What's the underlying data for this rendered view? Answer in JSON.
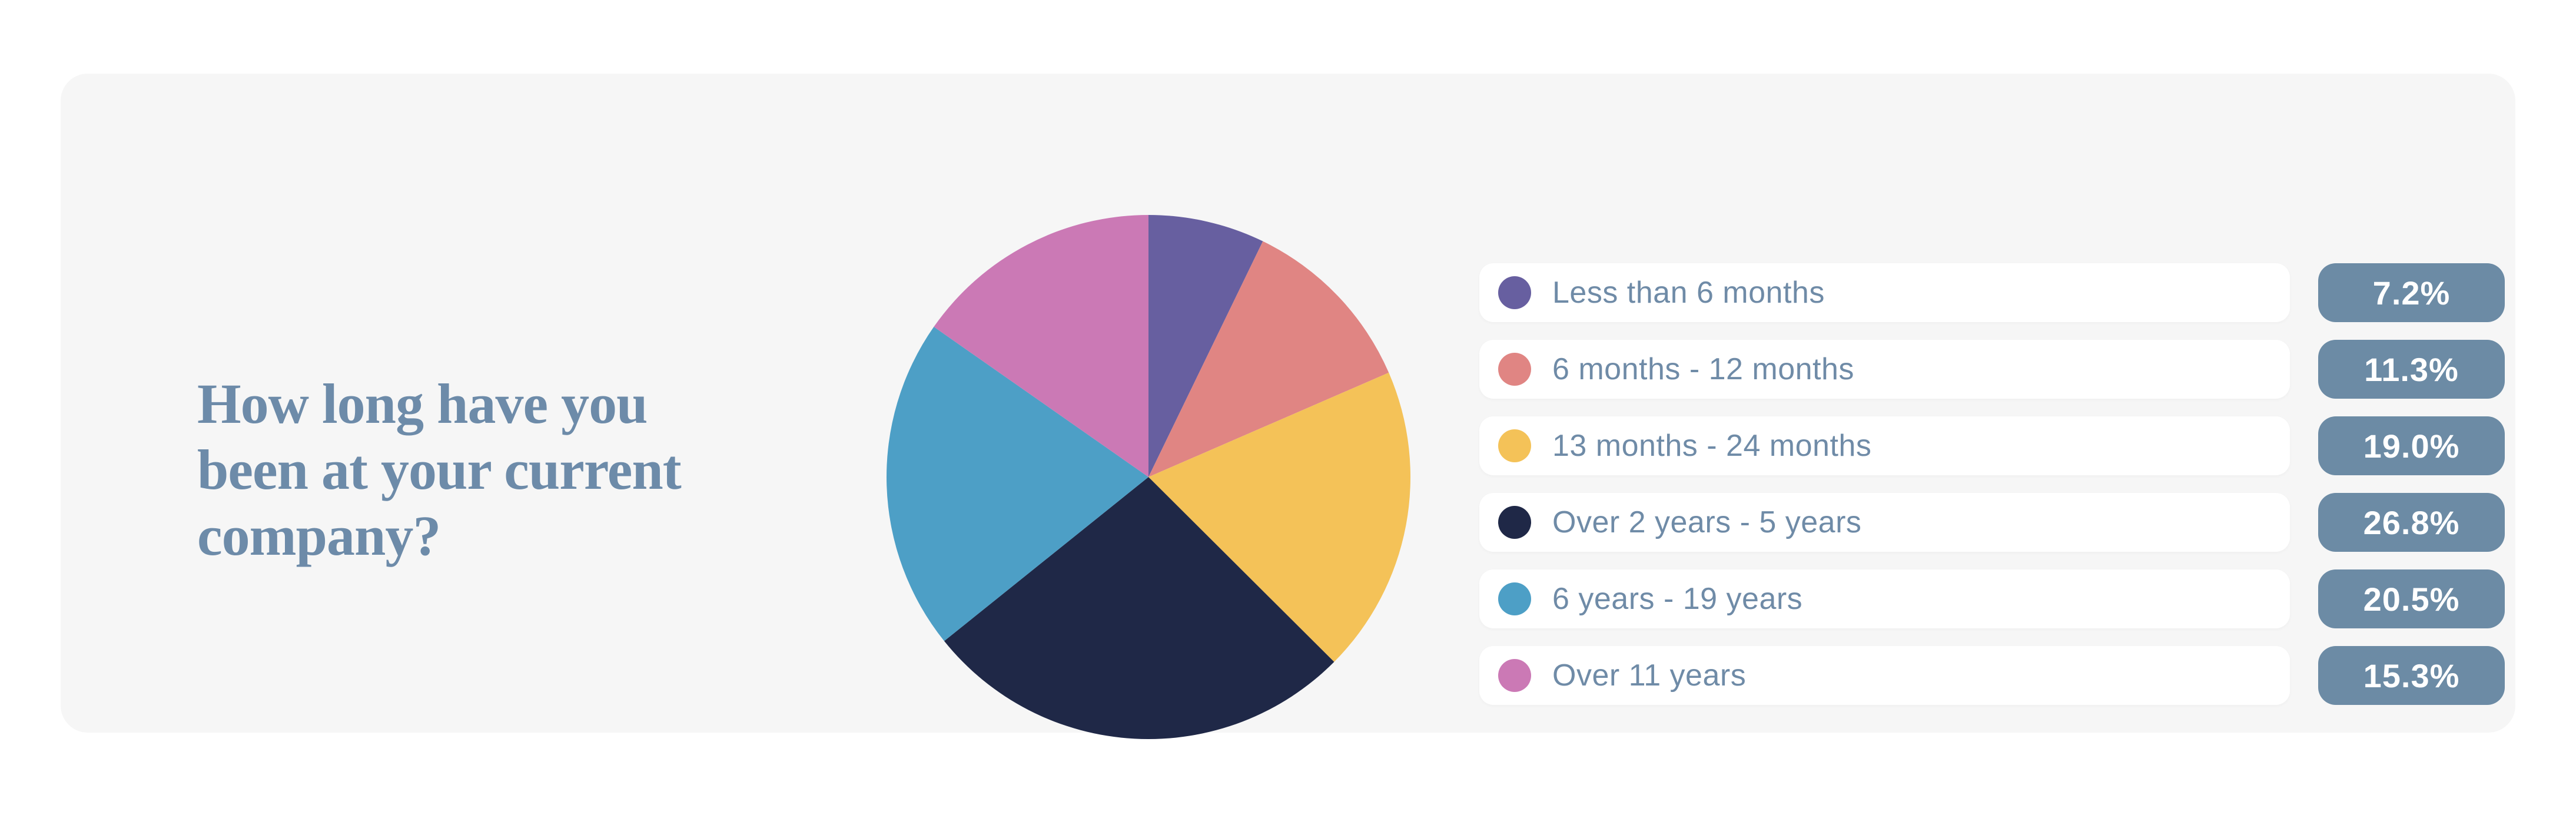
{
  "page": {
    "background_color": "#FFFFFF",
    "card_background_color": "#F6F6F6"
  },
  "title": {
    "text": "How long have you been at your current company?",
    "text_multiline": "How long have you\nbeen at your current\ncompany?",
    "color": "#6D8BA9"
  },
  "chart_data": {
    "type": "pie",
    "title": "How long have you been at your current company?",
    "start_angle_deg": 0,
    "direction": "clockwise",
    "legend_position": "right",
    "categories": [
      "Less than 6 months",
      "6 months - 12 months",
      "13 months - 24 months",
      "Over 2 years - 5 years",
      "6 years - 19 years",
      "Over 11 years"
    ],
    "values": [
      7.2,
      11.3,
      19.0,
      26.8,
      20.5,
      15.3
    ],
    "value_labels": [
      "7.2%",
      "11.3%",
      "19.0%",
      "26.8%",
      "20.5%",
      "15.3%"
    ],
    "colors": [
      "#675FA0",
      "#E08583",
      "#F4C258",
      "#1F2847",
      "#4D9FC6",
      "#CB79B5"
    ]
  },
  "legend": {
    "label_color": "#6F8BA7",
    "badge_color": "#6C8BA5",
    "badge_text_color": "#FFFFFF",
    "items": [
      {
        "label": "Less than 6 months",
        "value": "7.2%",
        "color": "#675FA0"
      },
      {
        "label": "6 months - 12 months",
        "value": "11.3%",
        "color": "#E08583"
      },
      {
        "label": "13 months - 24 months",
        "value": "19.0%",
        "color": "#F4C258"
      },
      {
        "label": "Over 2 years - 5 years",
        "value": "26.8%",
        "color": "#1F2847"
      },
      {
        "label": "6 years - 19 years",
        "value": "20.5%",
        "color": "#4D9FC6"
      },
      {
        "label": "Over 11 years",
        "value": "15.3%",
        "color": "#CB79B5"
      }
    ]
  }
}
